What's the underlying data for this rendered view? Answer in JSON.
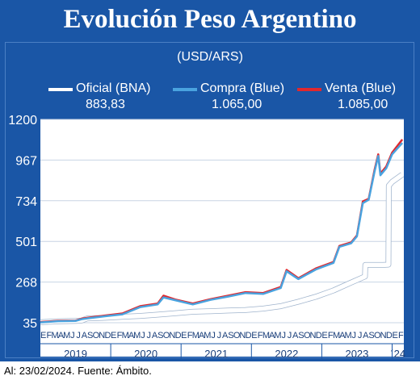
{
  "header": {
    "title": "Evolución Peso Argentino",
    "unit": "(USD/ARS)"
  },
  "legend": [
    {
      "name": "Oficial (BNA)",
      "value": "883,83",
      "color": "#ffffff"
    },
    {
      "name": "Compra (Blue)",
      "value": "1.065,00",
      "color": "#4aa3df"
    },
    {
      "name": "Venta (Blue)",
      "value": "1.085,00",
      "color": "#e0282e"
    }
  ],
  "footer": {
    "source": "Al: 23/02/2024. Fuente: Ámbito."
  },
  "colors": {
    "frame": "#1a56a6",
    "plot_bg": "#ffffff",
    "grid": "#c8d4e4"
  },
  "chart_data": {
    "type": "line",
    "ylim": [
      35,
      1200
    ],
    "yticks": [
      "1200",
      "967",
      "734",
      "501",
      "268",
      "35"
    ],
    "ytick_values": [
      1200,
      967,
      734,
      501,
      268,
      35
    ],
    "grid": true,
    "x_start": "2019-01",
    "month_ticks": [
      "E",
      "F",
      "M",
      "A",
      "M",
      "J",
      "J",
      "A",
      "S",
      "O",
      "N",
      "D",
      "E",
      "F",
      "M",
      "A",
      "M",
      "J",
      "J",
      "A",
      "S",
      "O",
      "N",
      "D",
      "E",
      "F",
      "M",
      "A",
      "M",
      "J",
      "J",
      "A",
      "S",
      "O",
      "N",
      "D",
      "E",
      "F",
      "M",
      "A",
      "M",
      "J",
      "J",
      "A",
      "S",
      "O",
      "N",
      "D",
      "E",
      "F",
      "M",
      "A",
      "M",
      "J",
      "J",
      "A",
      "S",
      "O",
      "N",
      "D",
      "E",
      "F"
    ],
    "year_labels": [
      "2019",
      "2020",
      "2021",
      "2022",
      "2023",
      "´24"
    ],
    "series": [
      {
        "name": "Oficial (BNA)",
        "x": [
          "2019-01",
          "2019-04",
          "2019-07",
          "2019-08",
          "2019-09",
          "2019-12",
          "2020-03",
          "2020-06",
          "2020-09",
          "2020-12",
          "2021-03",
          "2021-06",
          "2021-09",
          "2021-12",
          "2022-03",
          "2022-06",
          "2022-09",
          "2022-12",
          "2023-03",
          "2023-06",
          "2023-08-12",
          "2023-08-14",
          "2023-11-15",
          "2023-12-12",
          "2023-12-14",
          "2024-01",
          "2024-02-23"
        ],
        "values": [
          38,
          43,
          45,
          47,
          60,
          63,
          69,
          74,
          81,
          89,
          98,
          101,
          105,
          108,
          116,
          130,
          155,
          184,
          220,
          265,
          300,
          366,
          366,
          368,
          820,
          842,
          884
        ]
      },
      {
        "name": "Compra (Blue)",
        "x": [
          "2019-01",
          "2019-04",
          "2019-07",
          "2019-08",
          "2019-09",
          "2019-12",
          "2020-03",
          "2020-06",
          "2020-09",
          "2020-10",
          "2020-12",
          "2021-03",
          "2021-06",
          "2021-09",
          "2021-12",
          "2022-03",
          "2022-06",
          "2022-07",
          "2022-09",
          "2022-12",
          "2023-03",
          "2023-04",
          "2023-06",
          "2023-07",
          "2023-08",
          "2023-09",
          "2023-10",
          "2023-10-20",
          "2023-11",
          "2023-12",
          "2024-01",
          "2024-02-23"
        ],
        "values": [
          37,
          44,
          45,
          55,
          60,
          72,
          83,
          124,
          140,
          180,
          164,
          140,
          166,
          185,
          205,
          200,
          234,
          330,
          285,
          340,
          378,
          470,
          490,
          530,
          720,
          740,
          900,
          990,
          880,
          920,
          1000,
          1065
        ]
      },
      {
        "name": "Venta (Blue)",
        "x": [
          "2019-01",
          "2019-04",
          "2019-07",
          "2019-08",
          "2019-09",
          "2019-12",
          "2020-03",
          "2020-06",
          "2020-09",
          "2020-10",
          "2020-12",
          "2021-03",
          "2021-06",
          "2021-09",
          "2021-12",
          "2022-03",
          "2022-06",
          "2022-07",
          "2022-09",
          "2022-12",
          "2023-03",
          "2023-04",
          "2023-06",
          "2023-07",
          "2023-08",
          "2023-09",
          "2023-10",
          "2023-10-20",
          "2023-11",
          "2023-12",
          "2024-01",
          "2024-02-23"
        ],
        "values": [
          39,
          46,
          47,
          58,
          63,
          76,
          88,
          130,
          145,
          190,
          168,
          145,
          170,
          190,
          210,
          205,
          240,
          338,
          290,
          346,
          383,
          475,
          495,
          535,
          730,
          745,
          910,
          1000,
          890,
          930,
          1010,
          1085
        ]
      }
    ]
  }
}
